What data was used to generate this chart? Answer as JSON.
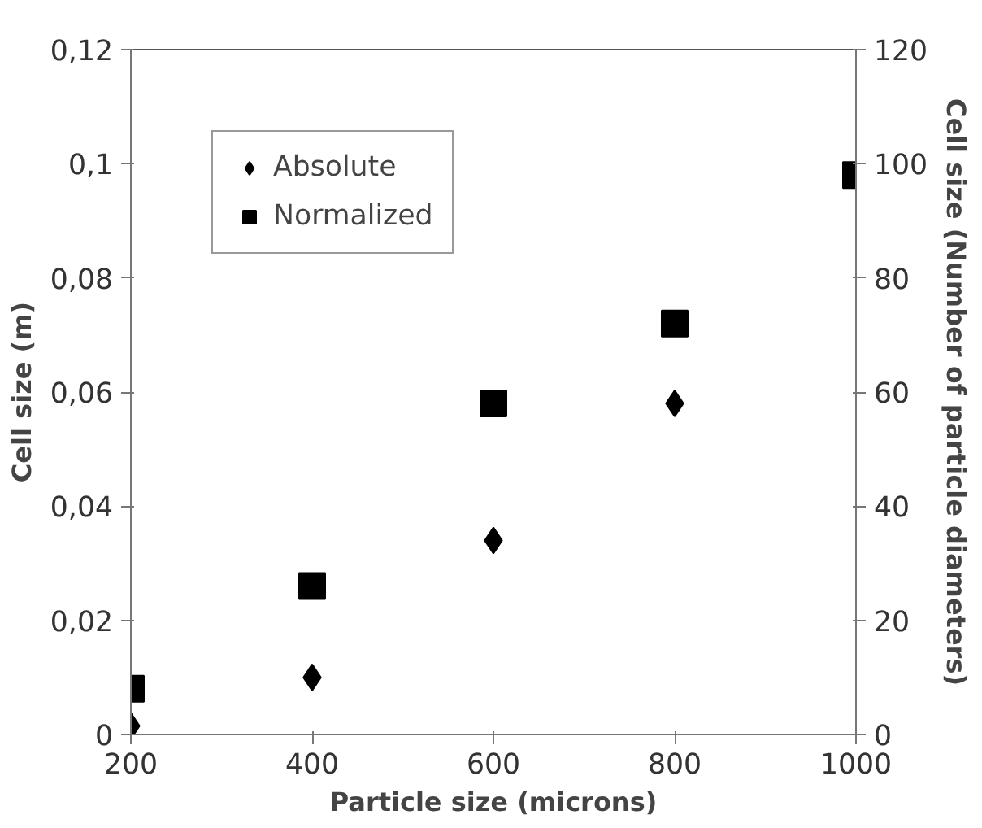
{
  "chart_data": {
    "type": "scatter",
    "x": [
      200,
      400,
      600,
      800,
      1000
    ],
    "xlabel": "Particle size (microns)",
    "ylabel": "Cell size (m)",
    "y2label": "Cell size (Number of particle diameters)",
    "series": [
      {
        "name": "Absolute",
        "color": "#000000",
        "marker": "diamond",
        "x": [
          200,
          400,
          600,
          800
        ],
        "values": [
          0.0015,
          0.01,
          0.034,
          0.058
        ]
      },
      {
        "name": "Normalized",
        "color": "#000000",
        "marker": "square",
        "axis": "y2",
        "values": [
          8,
          26,
          58,
          72,
          98
        ]
      }
    ],
    "xlim": [
      200,
      1000
    ],
    "xticks": [
      200,
      400,
      600,
      800,
      1000
    ],
    "ylim": [
      0,
      0.12
    ],
    "yticks": [
      0,
      {
        "value": 0.02,
        "label": "0,02"
      },
      {
        "value": 0.04,
        "label": "0,04"
      },
      {
        "value": 0.06,
        "label": "0,06"
      },
      {
        "value": 0.08,
        "label": "0,08"
      },
      {
        "value": 0.1,
        "label": "0,1"
      },
      {
        "value": 0.12,
        "label": "0,12"
      }
    ],
    "y2lim": [
      0,
      120
    ],
    "y2ticks": [
      0,
      20,
      40,
      60,
      80,
      100,
      120
    ],
    "grid": false,
    "legend": "top left"
  }
}
